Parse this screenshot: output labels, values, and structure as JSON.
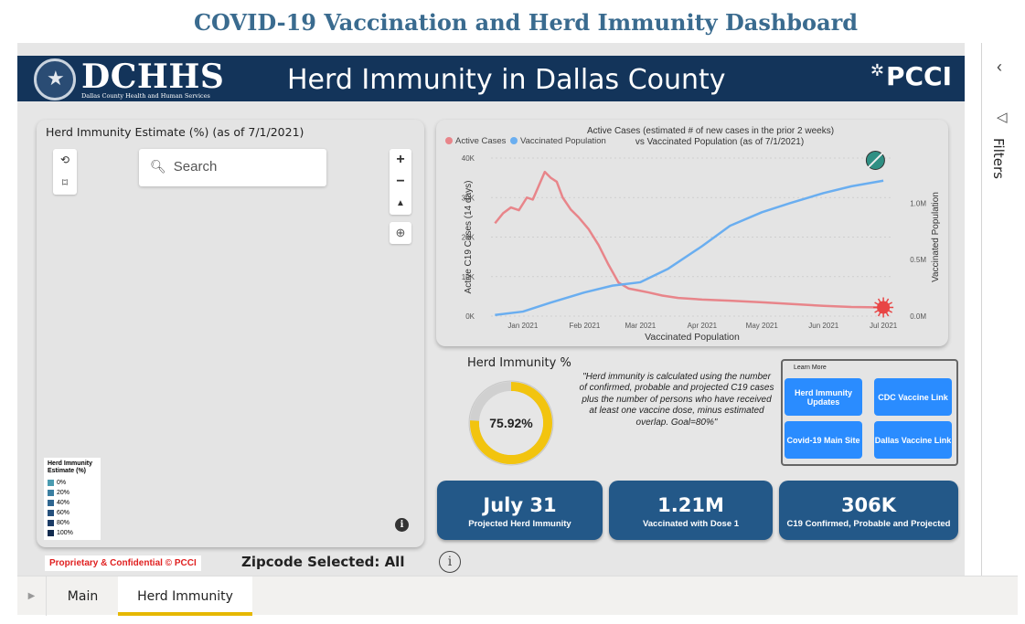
{
  "page": {
    "title": "COVID-19 Vaccination and Herd Immunity Dashboard"
  },
  "banner": {
    "org": "DCHHS",
    "org_sub": "Dallas County Health and Human Services",
    "title": "Herd Immunity in Dallas County",
    "partner": "PCCI"
  },
  "map": {
    "title": "Herd Immunity Estimate (%) (as of 7/1/2021)",
    "search_placeholder": "Search",
    "legend": {
      "title": "Herd Immunity Estimate (%)",
      "items": [
        "0%",
        "20%",
        "40%",
        "60%",
        "80%",
        "100%"
      ],
      "colors": [
        "#4a9bb0",
        "#3b7fa1",
        "#2f6690",
        "#25507c",
        "#1b3c66",
        "#122b4f"
      ]
    }
  },
  "footer": {
    "proprietary": "Proprietary & Confidential © PCCI",
    "zipcode": "Zipcode Selected: All"
  },
  "chart_data": {
    "type": "line",
    "title": "Active Cases (estimated # of new cases in the prior 2 weeks) vs Vaccinated Population (as of 7/1/2021)",
    "title_line1": "Active Cases (estimated # of new cases in the prior 2 weeks)",
    "title_line2": "vs Vaccinated Population (as of 7/1/2021)",
    "xlabel": "Vaccinated Population",
    "ylabel_left": "Active C19 Cases (14 days)",
    "ylabel_right": "Vaccinated Population",
    "x_ticks": [
      "Jan 2021",
      "Feb 2021",
      "Mar 2021",
      "Apr 2021",
      "May 2021",
      "Jun 2021",
      "Jul 2021"
    ],
    "y_left_ticks": [
      "0K",
      "10K",
      "20K",
      "30K",
      "40K"
    ],
    "y_left_range": [
      0,
      40000
    ],
    "y_right_ticks": [
      "0.0M",
      "0.5M",
      "1.0M"
    ],
    "y_right_range": [
      0,
      1400000
    ],
    "legend_position": "top-left",
    "grid": true,
    "series": [
      {
        "name": "Active Cases",
        "axis": "left",
        "color": "#e8858a",
        "x": [
          "2020-12-18",
          "2020-12-22",
          "2020-12-26",
          "2020-12-30",
          "2021-01-03",
          "2021-01-06",
          "2021-01-09",
          "2021-01-12",
          "2021-01-15",
          "2021-01-18",
          "2021-01-21",
          "2021-01-25",
          "2021-01-29",
          "2021-02-03",
          "2021-02-08",
          "2021-02-13",
          "2021-02-18",
          "2021-02-23",
          "2021-02-28",
          "2021-03-05",
          "2021-03-12",
          "2021-03-20",
          "2021-04-01",
          "2021-04-15",
          "2021-05-01",
          "2021-05-15",
          "2021-06-01",
          "2021-06-15",
          "2021-07-01"
        ],
        "values": [
          23500,
          26000,
          27500,
          26800,
          30000,
          29500,
          33000,
          36500,
          35000,
          34000,
          30000,
          27000,
          25000,
          22000,
          18000,
          13000,
          8500,
          7000,
          6500,
          6000,
          5200,
          4600,
          4200,
          3900,
          3500,
          3100,
          2600,
          2300,
          2200
        ]
      },
      {
        "name": "Vaccinated Population",
        "axis": "right",
        "color": "#6aaef0",
        "x": [
          "2020-12-18",
          "2021-01-01",
          "2021-01-15",
          "2021-02-01",
          "2021-02-15",
          "2021-03-01",
          "2021-03-15",
          "2021-04-01",
          "2021-04-15",
          "2021-05-01",
          "2021-05-15",
          "2021-06-01",
          "2021-06-15",
          "2021-07-01"
        ],
        "values": [
          10000,
          40000,
          120000,
          210000,
          270000,
          300000,
          420000,
          620000,
          800000,
          920000,
          1000000,
          1090000,
          1150000,
          1200000
        ]
      }
    ]
  },
  "herd": {
    "title": "Herd Immunity %",
    "percent": 75.92,
    "value_label": "75.92%",
    "quote": "\"Herd immunity is calculated using the number of confirmed, probable and projected C19 cases plus the number of persons who have received at least one vaccine dose, minus estimated overlap. Goal=80%\""
  },
  "learn_more": {
    "title": "Learn More",
    "buttons": [
      "Herd Immunity Updates",
      "CDC Vaccine Link",
      "Covid-19 Main Site",
      "Dallas Vaccine Link"
    ]
  },
  "kpis": [
    {
      "value": "July 31",
      "label": "Projected Herd Immunity"
    },
    {
      "value": "1.21M",
      "label": "Vaccinated with Dose 1"
    },
    {
      "value": "306K",
      "label": "C19 Confirmed, Probable and Projected"
    }
  ],
  "filters": {
    "label": "Filters"
  },
  "tabs": [
    "Main",
    "Herd Immunity"
  ]
}
